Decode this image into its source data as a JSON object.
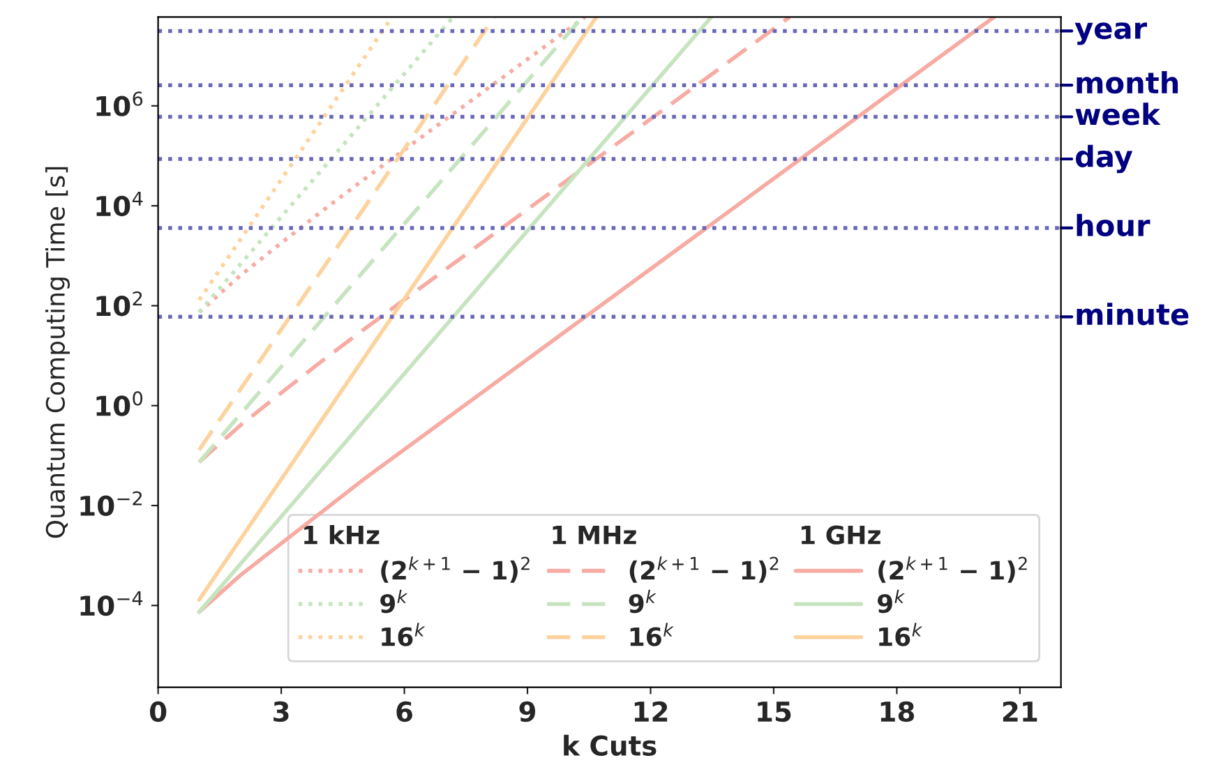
{
  "chart_data": {
    "type": "line",
    "xlabel": "k Cuts",
    "ylabel": "Quantum Computing Time [s]",
    "log": "y",
    "xlim": [
      0,
      22
    ],
    "xticks": [
      0,
      3,
      6,
      9,
      12,
      15,
      18,
      21
    ],
    "ylim": [
      2.3e-06,
      60000000.0
    ],
    "yticks": [
      {
        "value": 0.0001,
        "label": "10$^{−4}$"
      },
      {
        "value": 0.01,
        "label": "10$^{−2}$"
      },
      {
        "value": 1,
        "label": "10$^{0}$"
      },
      {
        "value": 100,
        "label": "10$^{2}$"
      },
      {
        "value": 10000,
        "label": "10$^{4}$"
      },
      {
        "value": 1000000,
        "label": "10$^{6}$"
      }
    ],
    "grid": false,
    "legend": "bottom right",
    "marker": "none",
    "annotations": [
      "1 kHz",
      "1 MHz",
      "1 GHz"
    ],
    "series": [
      {
        "name": "(2$^{k+1}$ − 1)$^{2}$",
        "color": "#f7aba3",
        "line_style": "dotted",
        "x": [
          1,
          2,
          3,
          4,
          5,
          10.4
        ],
        "values": [
          74,
          400,
          1800,
          7900,
          33000,
          60000000.0
        ]
      },
      {
        "name": "9$^{k}$",
        "color": "#c5e4bf",
        "line_style": "dotted",
        "x": [
          1,
          7.19
        ],
        "values": [
          74,
          60000000.0
        ]
      },
      {
        "name": "16$^{k}$",
        "color": "#fed29c",
        "line_style": "dotted",
        "x": [
          1,
          5.7
        ],
        "values": [
          130,
          60000000.0
        ]
      },
      {
        "name": "(2$^{k+1}$ − 1)$^{2}$",
        "color": "#f7aba3",
        "line_style": "dashed",
        "x": [
          1,
          2,
          3,
          4,
          5,
          15.39
        ],
        "values": [
          0.074,
          0.4,
          1.8,
          7.9,
          33,
          60000000.0
        ]
      },
      {
        "name": "9$^{k}$",
        "color": "#c5e4bf",
        "line_style": "dashed",
        "x": [
          1,
          10.34
        ],
        "values": [
          0.074,
          60000000.0
        ]
      },
      {
        "name": "16$^{k}$",
        "color": "#fed29c",
        "line_style": "dashed",
        "x": [
          1,
          8.19
        ],
        "values": [
          0.13,
          60000000.0
        ]
      },
      {
        "name": "(2$^{k+1}$ − 1)$^{2}$",
        "color": "#f7aba3",
        "line_style": "solid",
        "x": [
          1,
          2,
          5,
          20.37
        ],
        "values": [
          7.4e-05,
          0.0004,
          0.033,
          60000000.0
        ]
      },
      {
        "name": "9$^{k}$",
        "color": "#c5e4bf",
        "line_style": "solid",
        "x": [
          1,
          13.48
        ],
        "values": [
          7.4e-05,
          60000000.0
        ]
      },
      {
        "name": "16$^{k}$",
        "color": "#fed29c",
        "line_style": "solid",
        "x": [
          1,
          10.68
        ],
        "values": [
          0.00013,
          60000000.0
        ]
      }
    ],
    "ref_lines": [
      {
        "axis": "y",
        "value": 60,
        "label": "minute",
        "color": "#6868b8",
        "line_style": "dotted"
      },
      {
        "axis": "y",
        "value": 3600,
        "label": "hour",
        "color": "#6868b8",
        "line_style": "dotted"
      },
      {
        "axis": "y",
        "value": 86400,
        "label": "day",
        "color": "#6868b8",
        "line_style": "dotted"
      },
      {
        "axis": "y",
        "value": 604800,
        "label": "week",
        "color": "#6868b8",
        "line_style": "dotted"
      },
      {
        "axis": "y",
        "value": 2592000,
        "label": "month",
        "color": "#6868b8",
        "line_style": "dotted"
      },
      {
        "axis": "y",
        "value": 31536000,
        "label": "year",
        "color": "#6868b8",
        "line_style": "dotted"
      }
    ]
  }
}
